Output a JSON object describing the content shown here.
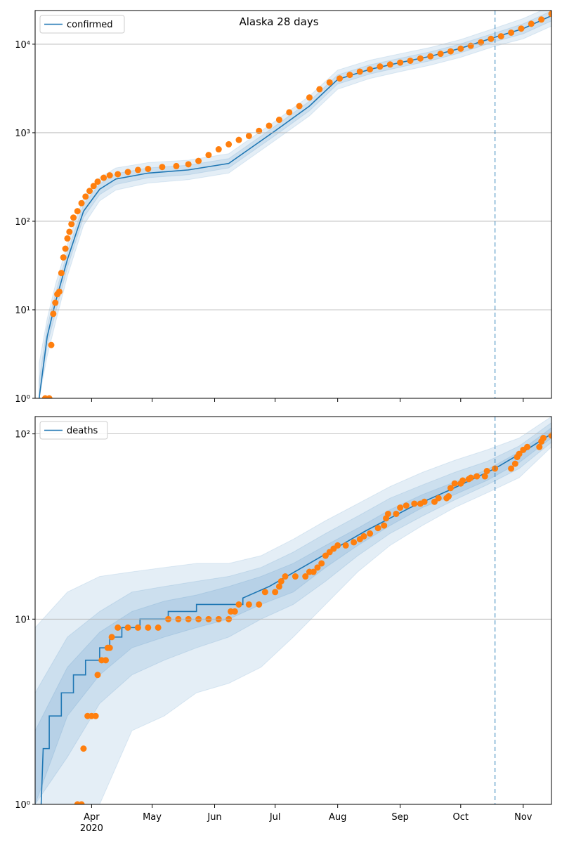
{
  "chart_data": [
    {
      "type": "line",
      "title": "Alaska 28 days",
      "log_y": true,
      "grid": true,
      "legend": "upper left",
      "xlim": [
        64,
        320
      ],
      "ylim": [
        1,
        24000
      ],
      "yticks": [
        {
          "value": 1,
          "label": "10⁰"
        },
        {
          "value": 10,
          "label": "10¹"
        },
        {
          "value": 100,
          "label": "10²"
        },
        {
          "value": 1000,
          "label": "10³"
        },
        {
          "value": 10000,
          "label": "10⁴"
        }
      ],
      "series": [
        {
          "name": "confirmed",
          "color": "#1f77b4",
          "x": [
            66,
            70,
            74,
            80,
            88,
            96,
            104,
            120,
            140,
            160,
            183,
            200,
            214,
            230,
            245,
            260,
            275,
            292,
            306,
            320
          ],
          "values": [
            1,
            5,
            12,
            37,
            130,
            230,
            300,
            350,
            380,
            450,
            1050,
            2000,
            4000,
            5200,
            6200,
            7300,
            9000,
            12000,
            15000,
            21000
          ]
        }
      ],
      "bands": [
        {
          "color": "#1f77b4",
          "x": [
            66,
            70,
            74,
            80,
            88,
            96,
            104,
            120,
            140,
            160,
            183,
            200,
            214,
            230,
            245,
            260,
            275,
            292,
            306,
            320
          ],
          "lower": [
            1,
            3,
            7,
            24,
            90,
            170,
            225,
            270,
            295,
            350,
            820,
            1550,
            3100,
            4100,
            4900,
            5800,
            7100,
            9500,
            11500,
            16000
          ],
          "upper": [
            2.5,
            8,
            19,
            55,
            185,
            310,
            400,
            460,
            490,
            580,
            1350,
            2600,
            5100,
            6600,
            7800,
            9200,
            11300,
            15200,
            19500,
            27000
          ]
        },
        {
          "color": "#1f77b4",
          "x": [
            66,
            70,
            74,
            80,
            88,
            96,
            104,
            120,
            140,
            160,
            183,
            200,
            214,
            230,
            245,
            260,
            275,
            292,
            306,
            320
          ],
          "lower": [
            1,
            4,
            9,
            30,
            110,
            200,
            260,
            310,
            335,
            400,
            930,
            1770,
            3550,
            4600,
            5500,
            6500,
            8000,
            10700,
            13100,
            18300
          ],
          "upper": [
            1.6,
            6.5,
            15,
            45,
            155,
            265,
            345,
            400,
            430,
            510,
            1190,
            2270,
            4500,
            5850,
            6950,
            8200,
            10100,
            13400,
            17000,
            23800
          ]
        }
      ],
      "points": {
        "color": "#ff7f0e",
        "x": [
          69,
          71,
          72,
          73,
          74,
          75,
          76,
          77,
          78,
          79,
          80,
          81,
          82,
          83,
          85,
          87,
          89,
          91,
          93,
          95,
          98,
          101,
          105,
          110,
          115,
          120,
          127,
          134,
          140,
          145,
          150,
          155,
          160,
          165,
          170,
          175,
          180,
          185,
          190,
          195,
          200,
          205,
          210,
          215,
          220,
          225,
          230,
          235,
          240,
          245,
          250,
          255,
          260,
          265,
          270,
          275,
          280,
          285,
          290,
          295,
          300,
          305,
          310,
          315,
          320
        ],
        "values": [
          1,
          1,
          4,
          9,
          12,
          15,
          16,
          26,
          39,
          49,
          64,
          76,
          93,
          110,
          130,
          160,
          190,
          220,
          250,
          280,
          310,
          330,
          340,
          360,
          380,
          390,
          410,
          420,
          440,
          480,
          560,
          650,
          740,
          830,
          920,
          1050,
          1200,
          1400,
          1700,
          2000,
          2500,
          3100,
          3700,
          4100,
          4500,
          4900,
          5200,
          5600,
          5900,
          6200,
          6500,
          6900,
          7300,
          7800,
          8300,
          8900,
          9600,
          10500,
          11500,
          12300,
          13500,
          15000,
          17000,
          19000,
          22000
        ]
      },
      "vline": {
        "x": 292,
        "color": "#1f77b4",
        "style": "dashed"
      }
    },
    {
      "type": "line",
      "log_y": true,
      "grid": true,
      "legend": "upper left",
      "xlim": [
        64,
        320
      ],
      "ylim": [
        1,
        124
      ],
      "xticks": [
        {
          "value": 92,
          "label": "Apr"
        },
        {
          "value": 122,
          "label": "May"
        },
        {
          "value": 153,
          "label": "Jun"
        },
        {
          "value": 183,
          "label": "Jul"
        },
        {
          "value": 214,
          "label": "Aug"
        },
        {
          "value": 245,
          "label": "Sep"
        },
        {
          "value": 275,
          "label": "Oct"
        },
        {
          "value": 306,
          "label": "Nov"
        }
      ],
      "year_label": "2020",
      "yticks": [
        {
          "value": 10,
          "label": "10¹"
        },
        {
          "value": 100,
          "label": "10²"
        },
        {
          "value": 1,
          "label": "10⁰"
        }
      ],
      "series": [
        {
          "name": "deaths",
          "color": "#1f77b4",
          "x": [
            67,
            68,
            71,
            71,
            77,
            77,
            83,
            83,
            89,
            89,
            96,
            96,
            101,
            101,
            107,
            107,
            116,
            116,
            130,
            130,
            144,
            144,
            167,
            167,
            180,
            200,
            228,
            250,
            270,
            292,
            306,
            320
          ],
          "values": [
            1,
            2,
            2,
            3,
            3,
            4,
            4,
            5,
            5,
            6,
            6,
            7,
            7,
            8,
            8,
            9,
            9,
            10,
            10,
            11,
            11,
            12,
            12,
            13,
            15,
            20,
            30,
            40,
            50,
            65,
            80,
            100
          ]
        }
      ],
      "bands": [
        {
          "color": "#1f77b4",
          "x": [
            64,
            80,
            96,
            112,
            128,
            144,
            160,
            176,
            192,
            208,
            224,
            240,
            256,
            272,
            288,
            304,
            320
          ],
          "lower": [
            1,
            1,
            1,
            2.5,
            3,
            4,
            4.5,
            5.5,
            8,
            12,
            18,
            25,
            32,
            40,
            48,
            58,
            85
          ],
          "upper": [
            9,
            14,
            17,
            18,
            19,
            20,
            20,
            22,
            27,
            34,
            42,
            52,
            62,
            72,
            82,
            95,
            124
          ]
        },
        {
          "color": "#1f77b4",
          "x": [
            64,
            80,
            96,
            112,
            128,
            144,
            160,
            176,
            192,
            208,
            224,
            240,
            256,
            272,
            288,
            304,
            320
          ],
          "lower": [
            1,
            1.8,
            3.5,
            5,
            6,
            7,
            8,
            10,
            12,
            16,
            22,
            29,
            36,
            44,
            53,
            65,
            90
          ],
          "upper": [
            4,
            8,
            11,
            14,
            15,
            16,
            17,
            19,
            23,
            29,
            36,
            45,
            53,
            62,
            71,
            86,
            115
          ]
        },
        {
          "color": "#1f77b4",
          "x": [
            64,
            80,
            96,
            112,
            128,
            144,
            160,
            176,
            192,
            208,
            224,
            240,
            256,
            272,
            288,
            304,
            320
          ],
          "lower": [
            1,
            3,
            5,
            7,
            8,
            9,
            10,
            12,
            14,
            19,
            25,
            32,
            40,
            47,
            56,
            70,
            95
          ],
          "upper": [
            2.5,
            5.5,
            8.5,
            11,
            12.5,
            13.5,
            15,
            17,
            20,
            25,
            31,
            39,
            47,
            55,
            64,
            80,
            108
          ]
        }
      ],
      "points": {
        "color": "#ff7f0e",
        "x": [
          85,
          87,
          88,
          90,
          92,
          94,
          95,
          97,
          99,
          100,
          101,
          102,
          105,
          110,
          115,
          120,
          125,
          130,
          135,
          140,
          145,
          150,
          155,
          160,
          161,
          163,
          165,
          170,
          175,
          178,
          183,
          185,
          186,
          188,
          193,
          198,
          200,
          202,
          204,
          206,
          208,
          210,
          212,
          214,
          218,
          222,
          225,
          227,
          230,
          234,
          237,
          238,
          239,
          243,
          245,
          248,
          252,
          255,
          257,
          262,
          264,
          268,
          269,
          270,
          272,
          275,
          276,
          279,
          280,
          283,
          287,
          288,
          292,
          300,
          302,
          303,
          304,
          306,
          308,
          314,
          315,
          316,
          320
        ],
        "values": [
          1,
          1,
          2,
          3,
          3,
          3,
          5,
          6,
          6,
          7,
          7,
          8,
          9,
          9,
          9,
          9,
          9,
          10,
          10,
          10,
          10,
          10,
          10,
          10,
          11,
          11,
          12,
          12,
          12,
          14,
          14,
          15,
          16,
          17,
          17,
          17,
          18,
          18,
          19,
          20,
          22,
          23,
          24,
          25,
          25,
          26,
          27,
          28,
          29,
          31,
          32,
          35,
          37,
          37,
          40,
          41,
          42,
          42,
          43,
          43,
          45,
          45,
          46,
          51,
          54,
          54,
          56,
          57,
          58,
          59,
          59,
          63,
          65,
          65,
          69,
          75,
          78,
          82,
          85,
          85,
          91,
          95,
          98
        ]
      },
      "vline": {
        "x": 292,
        "color": "#1f77b4",
        "style": "dashed"
      }
    }
  ]
}
